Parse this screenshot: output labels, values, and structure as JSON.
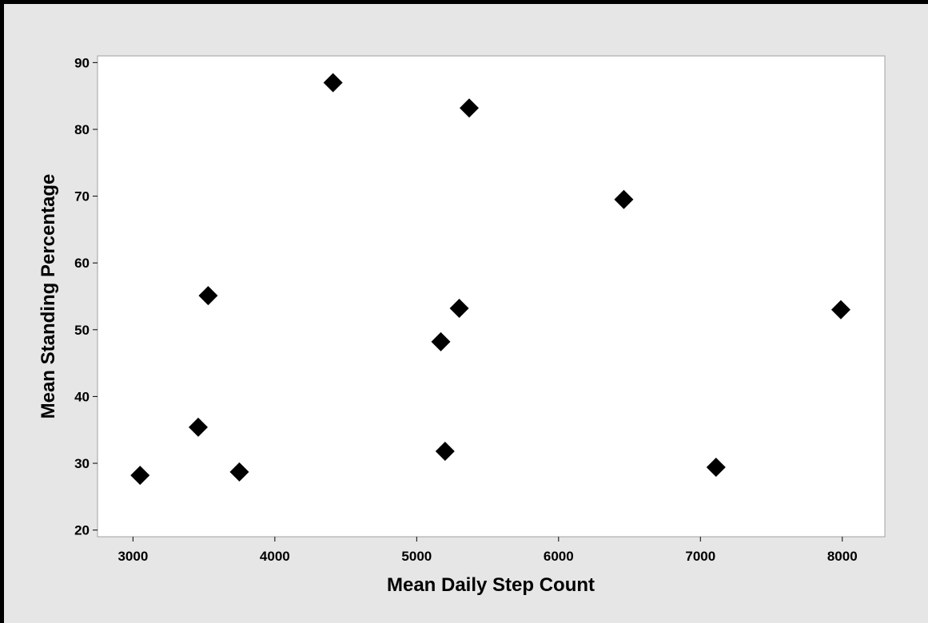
{
  "chart_data": {
    "type": "scatter",
    "title": "",
    "xlabel": "Mean Daily Step Count",
    "ylabel": "Mean Standing Percentage",
    "xlim": [
      2750,
      8300
    ],
    "ylim": [
      19,
      91
    ],
    "xticks": [
      3000,
      4000,
      5000,
      6000,
      7000,
      8000
    ],
    "yticks": [
      20,
      30,
      40,
      50,
      60,
      70,
      80,
      90
    ],
    "grid": false,
    "marker": "diamond",
    "marker_color": "#000000",
    "points": [
      {
        "x": 3050,
        "y": 28.2
      },
      {
        "x": 3460,
        "y": 35.4
      },
      {
        "x": 3530,
        "y": 55.1
      },
      {
        "x": 3750,
        "y": 28.7
      },
      {
        "x": 4410,
        "y": 87.0
      },
      {
        "x": 5170,
        "y": 48.2
      },
      {
        "x": 5200,
        "y": 31.8
      },
      {
        "x": 5300,
        "y": 53.2
      },
      {
        "x": 5370,
        "y": 83.2
      },
      {
        "x": 6460,
        "y": 69.5
      },
      {
        "x": 7110,
        "y": 29.4
      },
      {
        "x": 7990,
        "y": 53.0
      }
    ]
  }
}
